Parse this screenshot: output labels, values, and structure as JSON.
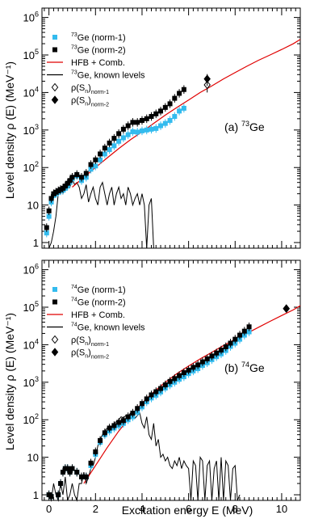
{
  "colors": {
    "norm1": "#33bbee",
    "norm2": "#000000",
    "hfb": "#e00000",
    "known": "#000000"
  },
  "shared": {
    "xlabel": "Excitation energy E (MeV)",
    "ylabel": "Level density ρ (E) (MeV⁻¹)"
  },
  "chart_data": [
    {
      "type": "scatter",
      "nucleus": "73Ge",
      "panel_label": {
        "prefix": "(a) ",
        "mass": "73",
        "element": "Ge"
      },
      "xlim": [
        -0.3,
        10.8
      ],
      "ylim_log10": [
        -0.15,
        6.25
      ],
      "log_y": true,
      "x_ticks": [
        0,
        2,
        4,
        6,
        8,
        10
      ],
      "x_tick_labels": false,
      "y_ticks": [
        1,
        10,
        100,
        1000,
        10000,
        100000,
        1000000
      ],
      "legend": [
        {
          "key": "norm1",
          "mass": "73",
          "text": "Ge (norm-1)",
          "marker": "square-cyan"
        },
        {
          "key": "norm2",
          "mass": "73",
          "text": "Ge (norm-2)",
          "marker": "square-black"
        },
        {
          "key": "hfb",
          "mass": "",
          "text": "HFB + Comb.",
          "marker": "line-red"
        },
        {
          "key": "known",
          "mass": "73",
          "text": "Ge, known levels",
          "marker": "line-black"
        },
        {
          "key": "sn1",
          "mass": "",
          "text": "ρ(S",
          "sub1": "n",
          "close": ")",
          "sub2": "norm-1",
          "marker": "diamond-open"
        },
        {
          "key": "sn2",
          "mass": "",
          "text": "ρ(S",
          "sub1": "n",
          "close": ")",
          "sub2": "norm-2",
          "marker": "diamond-filled"
        }
      ],
      "series": [
        {
          "name": "73Ge (norm-1)",
          "x": [
            -0.1,
            0.0,
            0.1,
            0.2,
            0.3,
            0.4,
            0.5,
            0.6,
            0.7,
            0.8,
            0.9,
            1.0,
            1.2,
            1.4,
            1.6,
            1.8,
            2.0,
            2.2,
            2.4,
            2.6,
            2.8,
            3.0,
            3.2,
            3.4,
            3.6,
            3.8,
            4.0,
            4.2,
            4.4,
            4.6,
            4.8,
            5.0,
            5.2,
            5.4,
            5.6,
            5.8
          ],
          "y": [
            1.8,
            5,
            12,
            18,
            20,
            22,
            24,
            25,
            28,
            32,
            40,
            50,
            60,
            45,
            55,
            90,
            110,
            160,
            230,
            300,
            380,
            500,
            620,
            750,
            900,
            880,
            950,
            1000,
            1050,
            1100,
            1300,
            1500,
            1800,
            2300,
            3200,
            3800
          ],
          "yerr_rel": 0.3
        },
        {
          "name": "73Ge (norm-2)",
          "x": [
            -0.1,
            0.0,
            0.1,
            0.2,
            0.3,
            0.4,
            0.5,
            0.6,
            0.7,
            0.8,
            0.9,
            1.0,
            1.2,
            1.4,
            1.6,
            1.8,
            2.0,
            2.2,
            2.4,
            2.6,
            2.8,
            3.0,
            3.2,
            3.4,
            3.6,
            3.8,
            4.0,
            4.2,
            4.4,
            4.6,
            4.8,
            5.0,
            5.2,
            5.4,
            5.6,
            5.8
          ],
          "y": [
            2.5,
            7,
            15,
            20,
            22,
            24,
            26,
            28,
            32,
            38,
            45,
            55,
            65,
            55,
            70,
            120,
            160,
            230,
            330,
            450,
            600,
            800,
            1050,
            1300,
            1600,
            1600,
            1800,
            2000,
            2300,
            2700,
            3200,
            4000,
            5000,
            7000,
            9500,
            12000
          ],
          "yerr_rel": 0.3
        },
        {
          "name": "HFB + Comb.",
          "x": [
            1.0,
            1.5,
            2.0,
            2.5,
            3.0,
            3.5,
            4.0,
            4.5,
            5.0,
            5.5,
            6.0,
            6.5,
            7.0,
            7.5,
            8.0,
            8.5,
            9.0,
            9.5,
            10.0,
            10.5,
            10.8
          ],
          "y": [
            30,
            55,
            100,
            180,
            320,
            550,
            900,
            1500,
            2500,
            4000,
            6300,
            10000,
            15000,
            23000,
            34000,
            50000,
            72000,
            100000,
            140000,
            200000,
            260000
          ]
        },
        {
          "name": "73Ge, known levels",
          "x": [
            0.0,
            0.1,
            0.2,
            0.3,
            0.4,
            0.5,
            0.6,
            0.7,
            0.8,
            0.9,
            1.0,
            1.1,
            1.2,
            1.3,
            1.4,
            1.5,
            1.6,
            1.7,
            1.8,
            1.9,
            2.0,
            2.1,
            2.2,
            2.3,
            2.4,
            2.5,
            2.6,
            2.7,
            2.8,
            2.9,
            3.0,
            3.1,
            3.2,
            3.3,
            3.4,
            3.5,
            3.6,
            3.7,
            3.8,
            3.9,
            4.0,
            4.1,
            4.2,
            4.3,
            4.4,
            4.5,
            4.6,
            4.7
          ],
          "y": [
            0.7,
            1,
            2,
            5,
            20,
            30,
            20,
            30,
            40,
            30,
            50,
            35,
            40,
            30,
            15,
            20,
            35,
            12,
            20,
            30,
            15,
            10,
            30,
            40,
            20,
            10,
            20,
            30,
            10,
            20,
            30,
            15,
            20,
            10,
            30,
            20,
            10,
            15,
            20,
            10,
            20,
            10,
            0.7,
            10,
            15,
            0.7,
            0.7,
            0.7
          ]
        },
        {
          "name": "ρ(Sn) norm-1",
          "x": [
            6.8
          ],
          "y": [
            16000
          ],
          "yerr": [
            6000
          ]
        },
        {
          "name": "ρ(Sn) norm-2",
          "x": [
            6.8
          ],
          "y": [
            23000
          ],
          "yerr": [
            8000
          ]
        }
      ]
    },
    {
      "type": "scatter",
      "nucleus": "74Ge",
      "panel_label": {
        "prefix": "(b) ",
        "mass": "74",
        "element": "Ge"
      },
      "xlim": [
        -0.3,
        10.8
      ],
      "ylim_log10": [
        -0.15,
        6.25
      ],
      "log_y": true,
      "x_ticks": [
        0,
        2,
        4,
        6,
        8,
        10
      ],
      "x_tick_labels": true,
      "y_ticks": [
        1,
        10,
        100,
        1000,
        10000,
        100000,
        1000000
      ],
      "legend": [
        {
          "key": "norm1",
          "mass": "74",
          "text": "Ge (norm-1)",
          "marker": "square-cyan"
        },
        {
          "key": "norm2",
          "mass": "74",
          "text": "Ge (norm-2)",
          "marker": "square-black"
        },
        {
          "key": "hfb",
          "mass": "",
          "text": "HFB + Comb.",
          "marker": "line-red"
        },
        {
          "key": "known",
          "mass": "74",
          "text": "Ge, known levels",
          "marker": "line-black"
        },
        {
          "key": "sn1",
          "mass": "",
          "text": "ρ(S",
          "sub1": "n",
          "close": ")",
          "sub2": "norm-1",
          "marker": "diamond-open"
        },
        {
          "key": "sn2",
          "mass": "",
          "text": "ρ(S",
          "sub1": "n",
          "close": ")",
          "sub2": "norm-2",
          "marker": "diamond-filled"
        }
      ],
      "series": [
        {
          "name": "74Ge (norm-1)",
          "x": [
            0.0,
            0.1,
            0.2,
            0.3,
            0.4,
            0.5,
            0.6,
            0.7,
            0.8,
            0.9,
            1.0,
            1.2,
            1.4,
            1.6,
            1.8,
            2.0,
            2.2,
            2.4,
            2.6,
            2.8,
            3.0,
            3.2,
            3.4,
            3.6,
            3.8,
            4.0,
            4.2,
            4.4,
            4.6,
            4.8,
            5.0,
            5.2,
            5.4,
            5.6,
            5.8,
            6.0,
            6.2,
            6.4,
            6.6,
            6.8,
            7.0,
            7.2,
            7.4,
            7.6,
            7.8,
            8.0,
            8.2,
            8.4,
            8.6
          ],
          "y": [
            1,
            0.9,
            0.6,
            0.7,
            1,
            2,
            4,
            5,
            5,
            4,
            5,
            4,
            3,
            3,
            6,
            12,
            25,
            40,
            50,
            60,
            70,
            80,
            100,
            120,
            160,
            220,
            300,
            380,
            450,
            550,
            700,
            850,
            1000,
            1200,
            1400,
            1700,
            2000,
            2300,
            2800,
            3300,
            4000,
            4800,
            5700,
            7000,
            9000,
            11000,
            14000,
            18000,
            22000
          ],
          "yerr_rel": 0.3
        },
        {
          "name": "74Ge (norm-2)",
          "x": [
            0.0,
            0.1,
            0.2,
            0.3,
            0.4,
            0.5,
            0.6,
            0.7,
            0.8,
            0.9,
            1.0,
            1.2,
            1.4,
            1.6,
            1.8,
            2.0,
            2.2,
            2.4,
            2.6,
            2.8,
            3.0,
            3.2,
            3.4,
            3.6,
            3.8,
            4.0,
            4.2,
            4.4,
            4.6,
            4.8,
            5.0,
            5.2,
            5.4,
            5.6,
            5.8,
            6.0,
            6.2,
            6.4,
            6.6,
            6.8,
            7.0,
            7.2,
            7.4,
            7.6,
            7.8,
            8.0,
            8.2,
            8.4,
            8.6
          ],
          "y": [
            1,
            0.9,
            0.6,
            0.7,
            1,
            2,
            4,
            5,
            5,
            4,
            5,
            4,
            3,
            3,
            7,
            14,
            28,
            45,
            60,
            70,
            85,
            95,
            120,
            150,
            200,
            270,
            360,
            460,
            560,
            680,
            850,
            1050,
            1250,
            1500,
            1800,
            2100,
            2500,
            2900,
            3500,
            4200,
            5000,
            6000,
            7200,
            8800,
            11000,
            14000,
            18000,
            23000,
            30000
          ],
          "yerr_rel": 0.3
        },
        {
          "name": "HFB + Comb.",
          "x": [
            1.5,
            2.0,
            2.5,
            3.0,
            3.5,
            4.0,
            4.5,
            5.0,
            5.5,
            6.0,
            6.5,
            7.0,
            7.5,
            8.0,
            8.5,
            9.0,
            9.5,
            10.0,
            10.5,
            10.8
          ],
          "y": [
            2,
            6,
            18,
            50,
            120,
            280,
            550,
            1000,
            1700,
            2700,
            4200,
            6300,
            9500,
            14000,
            20000,
            29000,
            42000,
            60000,
            85000,
            110000
          ]
        },
        {
          "name": "74Ge, known levels",
          "x": [
            0.0,
            0.1,
            0.2,
            0.3,
            0.4,
            0.5,
            0.6,
            0.7,
            0.8,
            0.9,
            1.0,
            1.1,
            1.2,
            1.3,
            1.4,
            1.5,
            1.6,
            1.7,
            1.8,
            1.9,
            2.0,
            2.1,
            2.2,
            2.3,
            2.4,
            2.5,
            2.6,
            2.7,
            2.8,
            2.9,
            3.0,
            3.1,
            3.2,
            3.3,
            3.4,
            3.5,
            3.6,
            3.7,
            3.8,
            3.9,
            4.0,
            4.1,
            4.2,
            4.3,
            4.4,
            4.5,
            4.6,
            4.7,
            4.8,
            4.9,
            5.0,
            5.1,
            5.2,
            5.3,
            5.4,
            5.5,
            5.6,
            5.7,
            5.8,
            5.9,
            6.0,
            6.1,
            6.2,
            6.3,
            6.4,
            6.5,
            6.6,
            6.7,
            6.8,
            6.9,
            7.0,
            7.1,
            7.2,
            7.3,
            7.4,
            7.5,
            7.6,
            7.7,
            7.8,
            7.9,
            8.0,
            8.1,
            8.2
          ],
          "y": [
            1,
            0.7,
            2,
            1,
            0.7,
            2,
            1,
            3,
            0.7,
            1,
            2,
            1,
            0.7,
            2,
            2,
            4,
            2,
            3,
            5,
            6,
            10,
            20,
            30,
            40,
            50,
            60,
            70,
            60,
            80,
            90,
            100,
            120,
            110,
            130,
            120,
            150,
            140,
            110,
            130,
            150,
            80,
            60,
            120,
            40,
            30,
            80,
            20,
            30,
            10,
            12,
            8,
            10,
            6,
            5,
            8,
            6,
            10,
            5,
            8,
            6,
            5,
            0.7,
            8,
            6,
            0.7,
            10,
            8,
            0.7,
            6,
            8,
            0.7,
            5,
            8,
            0.7,
            10,
            0.7,
            8,
            6,
            0.7,
            5,
            6,
            0.7,
            1
          ]
        },
        {
          "name": "ρ(Sn) norm-1",
          "x": [
            10.2
          ],
          "y": [
            92000
          ],
          "yerr": [
            10000
          ]
        },
        {
          "name": "ρ(Sn) norm-2",
          "x": [
            10.2
          ],
          "y": [
            92000
          ],
          "yerr": [
            10000
          ]
        }
      ]
    }
  ]
}
